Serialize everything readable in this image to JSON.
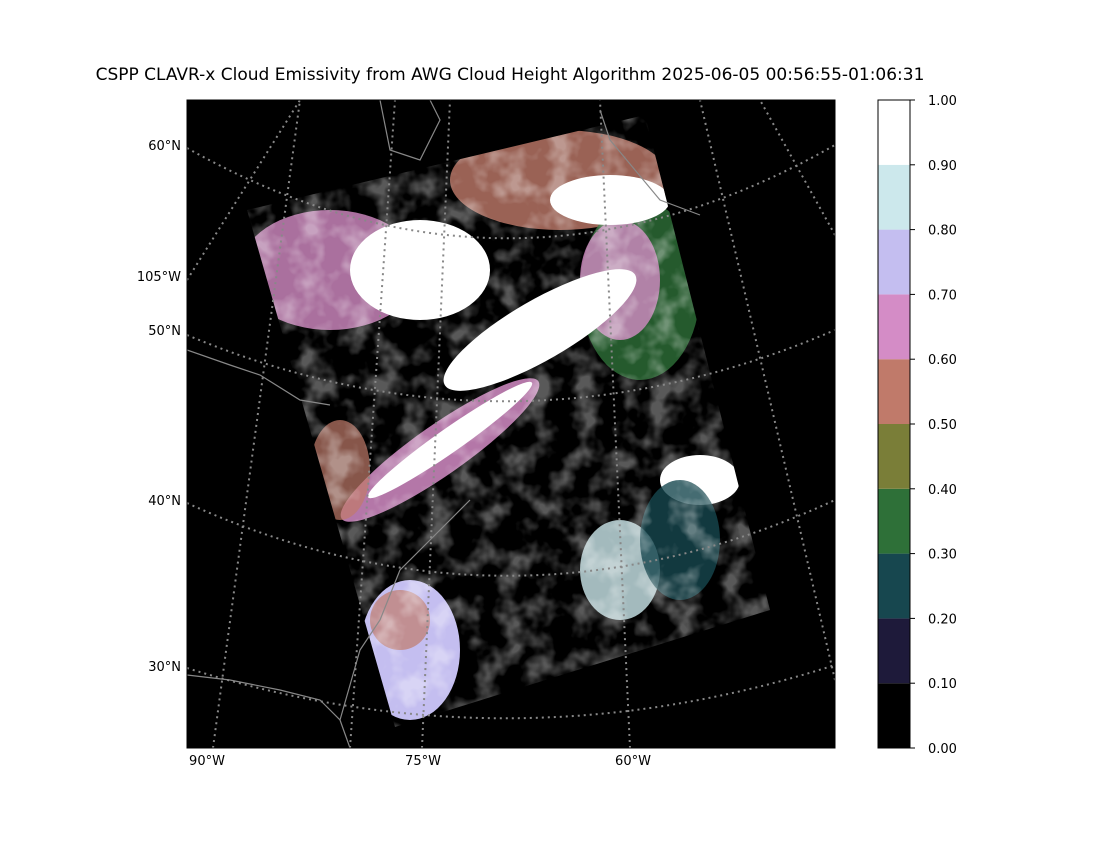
{
  "map": {
    "title": "CSPP CLAVR-x Cloud Emissivity from AWG Cloud Height Algorithm 2025-06-05 00:56:55-01:06:31",
    "lat_labels": [
      "60°N",
      "105°W",
      "50°N",
      "40°N",
      "30°N"
    ],
    "lon_labels": [
      "90°W",
      "75°W",
      "60°W"
    ]
  },
  "colorbar": {
    "ticks": [
      {
        "value": 0,
        "label": "0.00"
      },
      {
        "value": 0.1,
        "label": "0.10"
      },
      {
        "value": 0.2,
        "label": "0.20"
      },
      {
        "value": 0.3,
        "label": "0.30"
      },
      {
        "value": 0.4,
        "label": "0.40"
      },
      {
        "value": 0.5,
        "label": "0.50"
      },
      {
        "value": 0.6,
        "label": "0.60"
      },
      {
        "value": 0.7,
        "label": "0.70"
      },
      {
        "value": 0.8,
        "label": "0.80"
      },
      {
        "value": 0.9,
        "label": "0.90"
      },
      {
        "value": 1,
        "label": "1.00"
      }
    ],
    "colors": [
      "#000000",
      "#1e1a3a",
      "#17474f",
      "#2e7038",
      "#7a7e38",
      "#c07a6a",
      "#d48cc6",
      "#c4bef0",
      "#cce8ec",
      "#ffffff"
    ]
  }
}
